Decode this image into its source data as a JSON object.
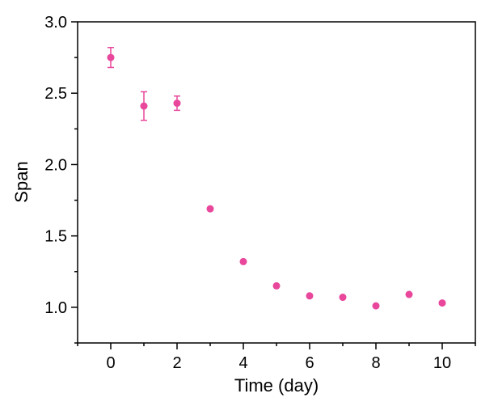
{
  "chart_data": {
    "type": "scatter",
    "title": "",
    "xlabel": "Time (day)",
    "ylabel": "Span",
    "xlim": [
      -1,
      11
    ],
    "ylim": [
      0.75,
      3.0
    ],
    "x_ticks": [
      0,
      2,
      4,
      6,
      8,
      10
    ],
    "x_tick_labels": [
      "0",
      "2",
      "4",
      "6",
      "8",
      "10"
    ],
    "y_ticks": [
      1.0,
      1.5,
      2.0,
      2.5,
      3.0
    ],
    "y_tick_labels": [
      "1.0",
      "1.5",
      "2.0",
      "2.5",
      "3.0"
    ],
    "grid": false,
    "legend": "none",
    "marker_color": "#e8479b",
    "series": [
      {
        "x": [
          0,
          1,
          2,
          3,
          4,
          5,
          6,
          7,
          8,
          9,
          10
        ],
        "y": [
          2.75,
          2.41,
          2.43,
          1.69,
          1.32,
          1.15,
          1.08,
          1.07,
          1.01,
          1.09,
          1.03
        ],
        "error": [
          0.07,
          0.1,
          0.05,
          0,
          0,
          0,
          0,
          0,
          0,
          0,
          0
        ]
      }
    ]
  }
}
